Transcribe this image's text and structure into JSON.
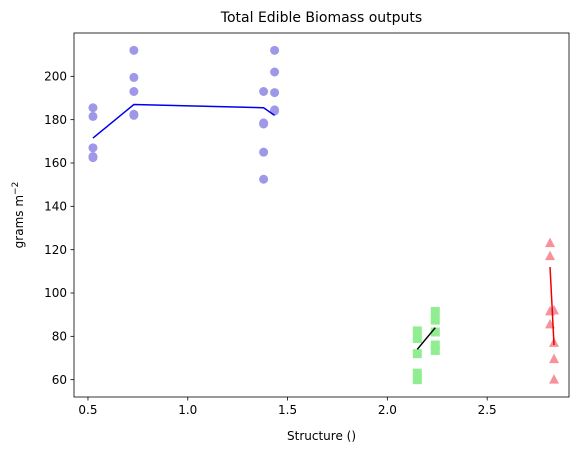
{
  "chart_data": {
    "type": "scatter",
    "title": "Total Edible Biomass outputs",
    "xlabel": "Structure ()",
    "ylabel_base": "grams m",
    "ylabel_sup": "−2",
    "xlim": [
      0.43,
      2.91
    ],
    "ylim": [
      52,
      220
    ],
    "xticks": [
      0.5,
      1.0,
      1.5,
      2.0,
      2.5
    ],
    "xtick_labels": [
      "0.5",
      "1.0",
      "1.5",
      "2.0",
      "2.5"
    ],
    "yticks": [
      60,
      80,
      100,
      120,
      140,
      160,
      180,
      200
    ],
    "ytick_labels": [
      "60",
      "80",
      "100",
      "120",
      "140",
      "160",
      "180",
      "200"
    ],
    "grid": false,
    "series": [
      {
        "marker": "circle",
        "color": "#9f97e8",
        "line_color": "#0000ee",
        "points": [
          [
            0.525,
            185.5
          ],
          [
            0.525,
            181.5
          ],
          [
            0.525,
            167
          ],
          [
            0.525,
            163
          ],
          [
            0.525,
            162.5
          ],
          [
            0.73,
            212
          ],
          [
            0.73,
            199.5
          ],
          [
            0.73,
            193
          ],
          [
            0.73,
            182.5
          ],
          [
            0.73,
            182
          ],
          [
            1.38,
            193
          ],
          [
            1.38,
            178.5
          ],
          [
            1.38,
            178
          ],
          [
            1.38,
            165
          ],
          [
            1.38,
            152.5
          ],
          [
            1.435,
            212
          ],
          [
            1.435,
            202
          ],
          [
            1.435,
            192.5
          ],
          [
            1.435,
            184.5
          ],
          [
            1.435,
            184
          ]
        ],
        "line": [
          [
            0.525,
            171.5
          ],
          [
            0.73,
            187
          ],
          [
            1.38,
            185.5
          ],
          [
            1.435,
            182
          ]
        ]
      },
      {
        "marker": "square",
        "color": "#90ee90",
        "line_color": "#000000",
        "points": [
          [
            2.15,
            82.5
          ],
          [
            2.15,
            79
          ],
          [
            2.15,
            72
          ],
          [
            2.15,
            63
          ],
          [
            2.15,
            60
          ],
          [
            2.24,
            91.5
          ],
          [
            2.24,
            87.5
          ],
          [
            2.24,
            82
          ],
          [
            2.24,
            76
          ],
          [
            2.24,
            73.5
          ]
        ],
        "line": [
          [
            2.15,
            74
          ],
          [
            2.24,
            84
          ]
        ]
      },
      {
        "marker": "triangle",
        "color": "#f5929a",
        "line_color": "#ee0000",
        "points": [
          [
            2.815,
            123
          ],
          [
            2.815,
            117
          ],
          [
            2.815,
            91.5
          ],
          [
            2.815,
            85.5
          ],
          [
            2.835,
            92
          ],
          [
            2.835,
            77
          ],
          [
            2.835,
            69.5
          ],
          [
            2.835,
            60
          ]
        ],
        "line": [
          [
            2.815,
            112
          ],
          [
            2.835,
            76
          ]
        ]
      }
    ]
  }
}
